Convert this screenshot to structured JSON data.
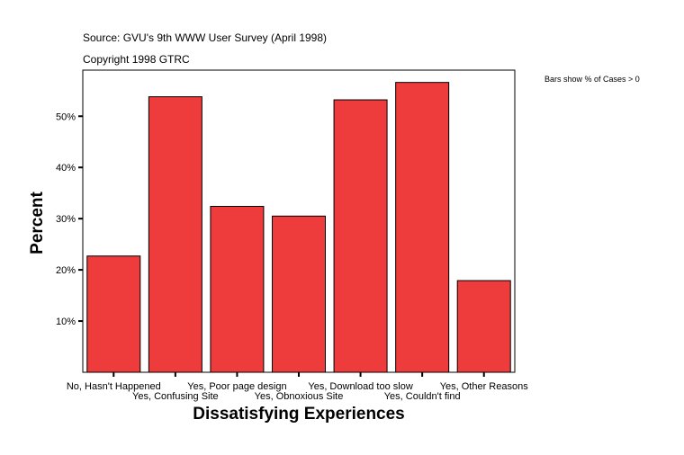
{
  "source": "Source: GVU's 9th WWW User Survey (April 1998)",
  "copyright": "Copyright 1998 GTRC",
  "note": "Bars show % of Cases > 0",
  "chart_data": {
    "type": "bar",
    "title": "",
    "xlabel": "Dissatisfying Experiences",
    "ylabel": "Percent",
    "categories": [
      "No, Hasn't Happened",
      "Yes, Confusing Site",
      "Yes, Poor page design",
      "Yes, Obnoxious Site",
      "Yes, Download too slow",
      "Yes, Couldn't find",
      "Yes, Other Reasons"
    ],
    "values": [
      22.7,
      53.8,
      32.4,
      30.5,
      53.2,
      56.6,
      17.9
    ],
    "ylim": [
      0,
      59
    ],
    "yticks": [
      10,
      20,
      30,
      40,
      50
    ],
    "ytick_labels": [
      "10%",
      "20%",
      "30%",
      "40%",
      "50%"
    ],
    "grid": false,
    "bar_color": "#ee3b3b"
  }
}
